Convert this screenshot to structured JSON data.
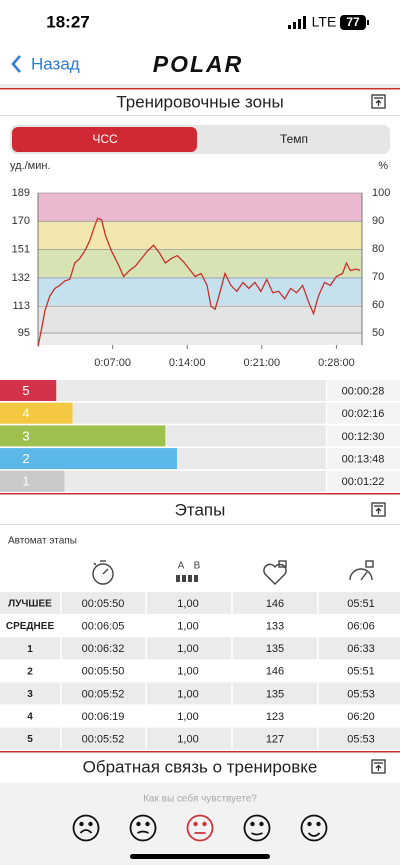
{
  "status_bar": {
    "time": "18:27",
    "network": "LTE",
    "battery": "77"
  },
  "nav": {
    "back": "Назад",
    "logo": "POLAR"
  },
  "zones_section": {
    "title": "Тренировочные зоны",
    "tabs": [
      "ЧСС",
      "Темп"
    ]
  },
  "chart_data": {
    "type": "line",
    "y_label": "уд./мин.",
    "y2_label": "%",
    "x": [
      0,
      22,
      39,
      67,
      95,
      123,
      151,
      179,
      207,
      235,
      263,
      291,
      319,
      336,
      358,
      381,
      414,
      448,
      482,
      515,
      549,
      582,
      616,
      650,
      683,
      717,
      750,
      784,
      818,
      851,
      885,
      918,
      952,
      974,
      997,
      1019,
      1053,
      1086,
      1120,
      1154,
      1187,
      1221,
      1254,
      1288,
      1322,
      1355,
      1389,
      1422,
      1456,
      1490,
      1523,
      1551,
      1579,
      1613,
      1646,
      1680,
      1714,
      1736,
      1758,
      1792,
      1814
    ],
    "series": [
      {
        "color": "#c8302c",
        "values": [
          86,
          99,
          110,
          120,
          125,
          127,
          130,
          131,
          142,
          145,
          150,
          157,
          167,
          172,
          171,
          160,
          150,
          142,
          133,
          137,
          140,
          145,
          150,
          154,
          149,
          142,
          145,
          147,
          143,
          138,
          133,
          135,
          127,
          113,
          111,
          120,
          135,
          127,
          123,
          129,
          125,
          129,
          123,
          131,
          122,
          123,
          118,
          125,
          122,
          127,
          116,
          108,
          120,
          129,
          127,
          133,
          135,
          142,
          137,
          138,
          137
        ]
      }
    ],
    "xlim": [
      0,
      1824
    ],
    "xticks": [
      {
        "value": 420,
        "label": "0:07:00"
      },
      {
        "value": 840,
        "label": "0:14:00"
      },
      {
        "value": 1260,
        "label": "0:21:00"
      },
      {
        "value": 1680,
        "label": "0:28:00"
      }
    ],
    "ylim": [
      87,
      189
    ],
    "yticks": [
      95,
      113,
      132,
      151,
      170,
      189
    ],
    "y2lim": [
      45.7,
      100
    ],
    "y2ticks": [
      50,
      60,
      70,
      80,
      90,
      100
    ],
    "zone_colors": [
      "#e4e4e4",
      "#c6e1ee",
      "#d8e3b3",
      "#f2e7ae",
      "#eab9d0"
    ],
    "grid": true
  },
  "zone_bars": {
    "labels": [
      "5",
      "4",
      "3",
      "2",
      "1"
    ],
    "values": [
      28,
      136,
      750,
      828,
      82
    ],
    "value_labels": [
      "00:00:28",
      "00:02:16",
      "00:12:30",
      "00:13:48",
      "00:01:22"
    ],
    "colors": [
      "#d2334a",
      "#f5c842",
      "#9dc04f",
      "#5bb8e8",
      "#c9c9c9"
    ]
  },
  "laps_section": {
    "title": "Этапы",
    "subtitle": "Автомат этапы",
    "rows": [
      [
        "ЛУЧШЕЕ",
        "00:05:50",
        "1,00",
        "146",
        "05:51"
      ],
      [
        "СРЕДНЕЕ",
        "00:06:05",
        "1,00",
        "133",
        "06:06"
      ],
      [
        "1",
        "00:06:32",
        "1,00",
        "135",
        "06:33"
      ],
      [
        "2",
        "00:05:50",
        "1,00",
        "146",
        "05:51"
      ],
      [
        "3",
        "00:05:52",
        "1,00",
        "135",
        "05:53"
      ],
      [
        "4",
        "00:06:19",
        "1,00",
        "123",
        "06:20"
      ],
      [
        "5",
        "00:05:52",
        "1,00",
        "127",
        "05:53"
      ]
    ]
  },
  "feedback_section": {
    "title": "Обратная связь о тренировке",
    "prompt": "Как вы себя чувствуете?"
  }
}
